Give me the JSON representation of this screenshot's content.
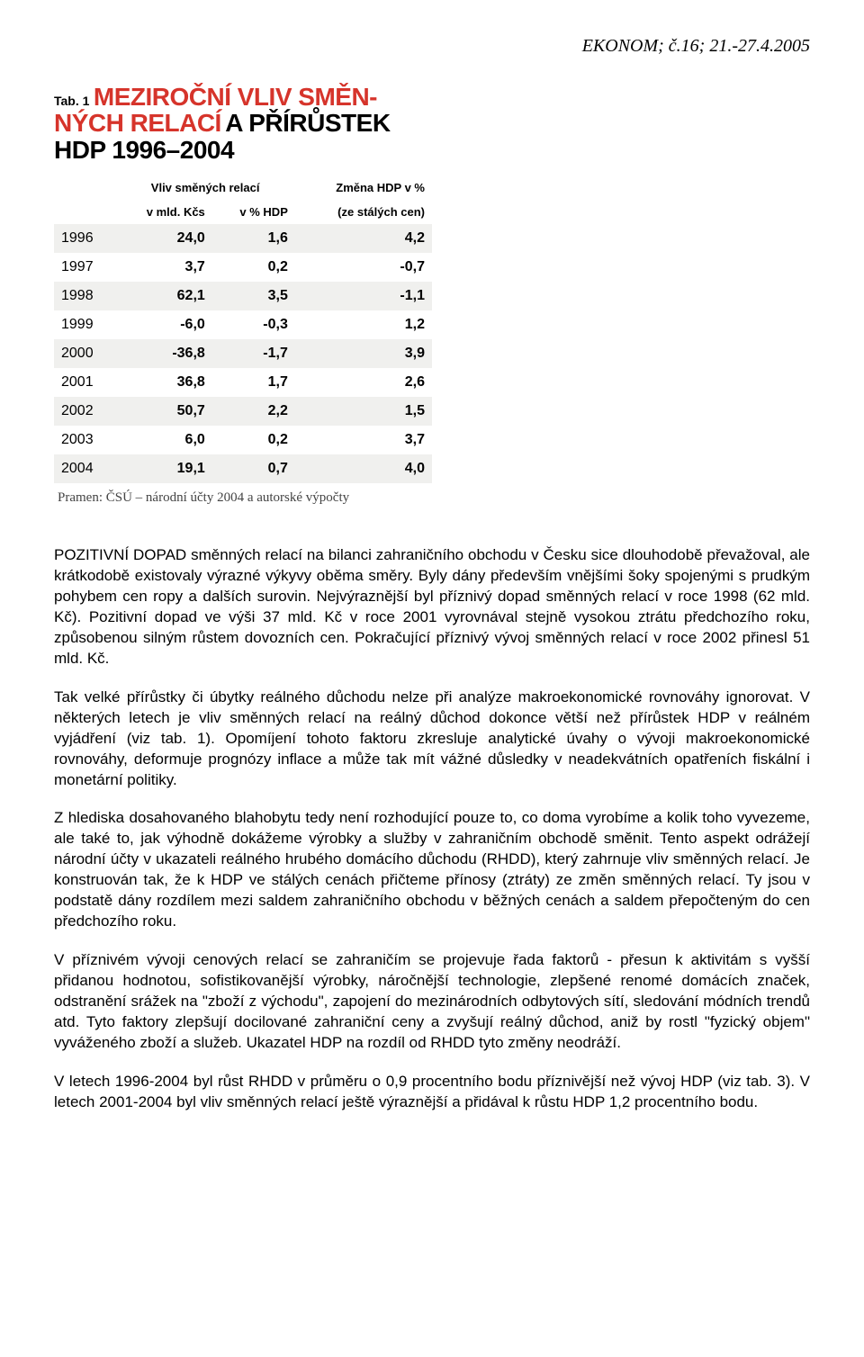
{
  "header": "EKONOM; č.16; 21.-27.4.2005",
  "table": {
    "label_prefix": "Tab. 1",
    "title_red_1": "MEZIROČNÍ VLIV SMĚN-",
    "title_red_2": "NÝCH RELACÍ",
    "title_black_1": "A PŘÍRŮSTEK",
    "title_black_2": "HDP 1996–2004",
    "title_colors": {
      "red": "#d6342b",
      "black": "#000000"
    },
    "col_headers": {
      "group1": "Vliv směných relací",
      "c1": "v mld. Kčs",
      "c2": "v % HDP",
      "c3_a": "Změna HDP v %",
      "c3_b": "(ze stálých cen)"
    },
    "row_stripe_even": "#f0f0ee",
    "row_stripe_odd": "#ffffff",
    "rows": [
      {
        "year": "1996",
        "v1": "24,0",
        "v2": "1,6",
        "v3": "4,2"
      },
      {
        "year": "1997",
        "v1": "3,7",
        "v2": "0,2",
        "v3": "-0,7"
      },
      {
        "year": "1998",
        "v1": "62,1",
        "v2": "3,5",
        "v3": "-1,1"
      },
      {
        "year": "1999",
        "v1": "-6,0",
        "v2": "-0,3",
        "v3": "1,2"
      },
      {
        "year": "2000",
        "v1": "-36,8",
        "v2": "-1,7",
        "v3": "3,9"
      },
      {
        "year": "2001",
        "v1": "36,8",
        "v2": "1,7",
        "v3": "2,6"
      },
      {
        "year": "2002",
        "v1": "50,7",
        "v2": "2,2",
        "v3": "1,5"
      },
      {
        "year": "2003",
        "v1": "6,0",
        "v2": "0,2",
        "v3": "3,7"
      },
      {
        "year": "2004",
        "v1": "19,1",
        "v2": "0,7",
        "v3": "4,0"
      }
    ],
    "source": "Pramen: ČSÚ – národní účty 2004 a autorské výpočty"
  },
  "paragraphs": {
    "p1": "POZITIVNÍ DOPAD směnných relací na bilanci zahraničního obchodu v Česku sice dlouhodobě převažoval, ale krátkodobě existovaly výrazné výkyvy oběma směry. Byly dány především vnějšími šoky spojenými s prudkým pohybem cen ropy a dalších surovin. Nejvýraznější byl příznivý dopad směnných relací v roce 1998 (62 mld. Kč). Pozitivní dopad ve výši 37 mld. Kč v roce 2001 vyrovnával stejně vysokou ztrátu předchozího roku, způsobenou silným růstem dovozních cen. Pokračující příznivý vývoj směnných relací v roce 2002 přinesl 51 mld. Kč.",
    "p2": "Tak velké přírůstky či úbytky reálného důchodu nelze při analýze makroekonomické rovnováhy ignorovat. V některých letech je vliv směnných relací na reálný důchod dokonce větší než přírůstek HDP v reálném vyjádření (viz tab. 1). Opomíjení tohoto faktoru zkresluje analytické úvahy o vývoji makroekonomické rovnováhy, deformuje prognózy inflace a může tak mít vážné důsledky v neadekvátních opatřeních fiskální i monetární politiky.",
    "p3": "Z hlediska dosahovaného blahobytu tedy není rozhodující pouze to, co doma vyrobíme a kolik toho vyvezeme, ale také to, jak výhodně dokážeme výrobky a služby v zahraničním obchodě směnit. Tento aspekt odrážejí národní účty v ukazateli reálného hrubého domácího důchodu (RHDD), který zahrnuje vliv směnných relací. Je konstruován tak, že k HDP ve stálých cenách přičteme přínosy (ztráty) ze změn směnných relací. Ty jsou v podstatě dány rozdílem mezi saldem zahraničního obchodu v běžných cenách a saldem přepočteným do cen předchozího roku.",
    "p4": "V příznivém vývoji cenových relací se zahraničím se projevuje řada faktorů - přesun k aktivitám s vyšší přidanou hodnotou, sofistikovanější výrobky, náročnější technologie, zlepšené renomé domácích značek, odstranění srážek na \"zboží z východu\", zapojení do mezinárodních odbytových sítí, sledování módních trendů atd. Tyto faktory zlepšují docilované zahraniční ceny a zvyšují reálný důchod, aniž by rostl \"fyzický objem\" vyváženého zboží a služeb. Ukazatel HDP na rozdíl od RHDD tyto změny neodráží.",
    "p5": "V letech 1996-2004 byl růst RHDD v průměru o 0,9 procentního bodu příznivější než vývoj HDP (viz tab. 3). V letech 2001-2004 byl vliv směnných relací ještě výraznější a přidával k růstu HDP 1,2 procentního bodu."
  }
}
